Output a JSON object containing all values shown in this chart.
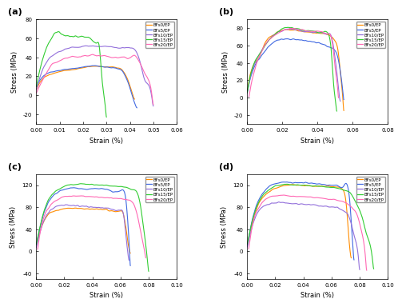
{
  "colors": {
    "BFs0": "#FF8C00",
    "BFs5": "#4169E1",
    "BFs10": "#9370DB",
    "BFs15": "#32CD32",
    "BFs20": "#FF69B4"
  },
  "legend_labels": [
    "BFs0/EP",
    "BFs5/EP",
    "BFs10/EP",
    "BFs15/EP",
    "BFs20/EP"
  ],
  "subplot_labels": [
    "(a)",
    "(b)",
    "(c)",
    "(d)"
  ],
  "xlabel": "Strain (%)",
  "ylabel": "Stress (MPa)",
  "panel_a": {
    "xlim": [
      0,
      0.06
    ],
    "ylim": [
      -30,
      80
    ],
    "yticks": [
      -20,
      0,
      20,
      40,
      60,
      80
    ],
    "xticks": [
      0.0,
      0.01,
      0.02,
      0.03,
      0.04,
      0.05,
      0.06
    ]
  },
  "panel_b": {
    "xlim": [
      0,
      0.08
    ],
    "ylim": [
      -30,
      90
    ],
    "yticks": [
      -20,
      0,
      20,
      40,
      60,
      80
    ],
    "xticks": [
      0.0,
      0.02,
      0.04,
      0.06,
      0.08
    ]
  },
  "panel_c": {
    "xlim": [
      0,
      0.1
    ],
    "ylim": [
      -50,
      140
    ],
    "yticks": [
      -40,
      0,
      40,
      80,
      120
    ],
    "xticks": [
      0.0,
      0.02,
      0.04,
      0.06,
      0.08,
      0.1
    ]
  },
  "panel_d": {
    "xlim": [
      0,
      0.1
    ],
    "ylim": [
      -50,
      140
    ],
    "yticks": [
      -40,
      0,
      40,
      80,
      120
    ],
    "xticks": [
      0.0,
      0.02,
      0.04,
      0.06,
      0.08,
      0.1
    ]
  }
}
